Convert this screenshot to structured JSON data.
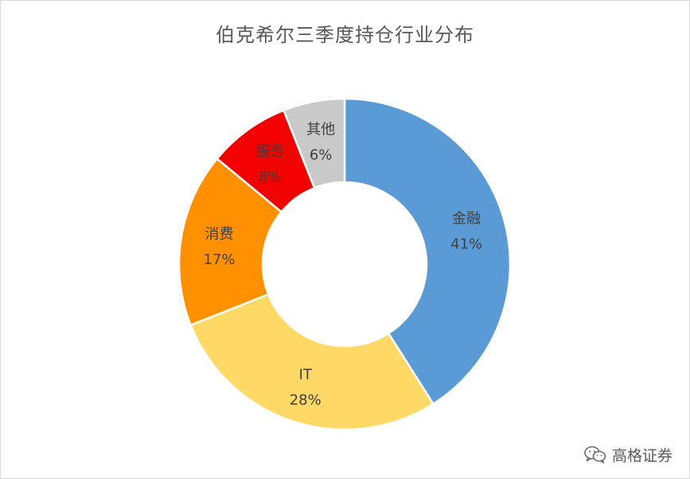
{
  "chart_data": {
    "type": "pie",
    "title": "伯克希尔三季度持仓行业分布",
    "slices": [
      {
        "name": "金融",
        "value": 41,
        "label": "41%",
        "color": "#5B9BD5"
      },
      {
        "name": "IT",
        "value": 28,
        "label": "28%",
        "color": "#FFD966"
      },
      {
        "name": "消费",
        "value": 17,
        "label": "17%",
        "color": "#FF9000"
      },
      {
        "name": "服务",
        "value": 8,
        "label": "8%",
        "color": "#F30000"
      },
      {
        "name": "其他",
        "value": 6,
        "label": "6%",
        "color": "#C9C9C9"
      }
    ],
    "donut": true,
    "start": "top",
    "direction": "clockwise"
  },
  "watermark": {
    "text": "高格证券",
    "icon": "wechat-icon"
  }
}
